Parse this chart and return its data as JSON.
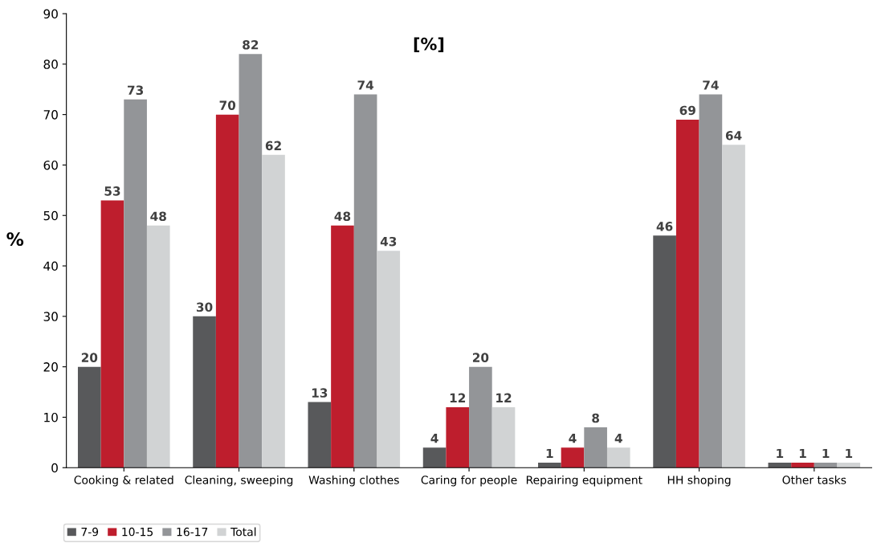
{
  "chart_data": {
    "type": "bar",
    "ylabel": "%",
    "annotations": [
      "[%]"
    ],
    "categories": [
      "Cooking & related",
      "Cleaning, sweeping",
      "Washing clothes",
      "Caring for people",
      "Repairing equipment",
      "HH shoping",
      "Other tasks"
    ],
    "series": [
      {
        "name": "7-9",
        "color": "#58595b",
        "values": [
          20,
          30,
          13,
          4,
          1,
          46,
          1
        ]
      },
      {
        "name": "10-15",
        "color": "#be1e2d",
        "values": [
          53,
          70,
          48,
          12,
          4,
          69,
          1
        ]
      },
      {
        "name": "16-17",
        "color": "#939598",
        "values": [
          73,
          82,
          74,
          20,
          8,
          74,
          1
        ]
      },
      {
        "name": "Total",
        "color": "#d1d3d4",
        "values": [
          48,
          62,
          43,
          12,
          4,
          64,
          1
        ]
      }
    ],
    "ylim": [
      0,
      90
    ],
    "yticks": [
      0,
      10,
      20,
      30,
      40,
      50,
      60,
      70,
      80,
      90
    ],
    "data_labels": true,
    "grid": false,
    "legend": "bottom left"
  }
}
